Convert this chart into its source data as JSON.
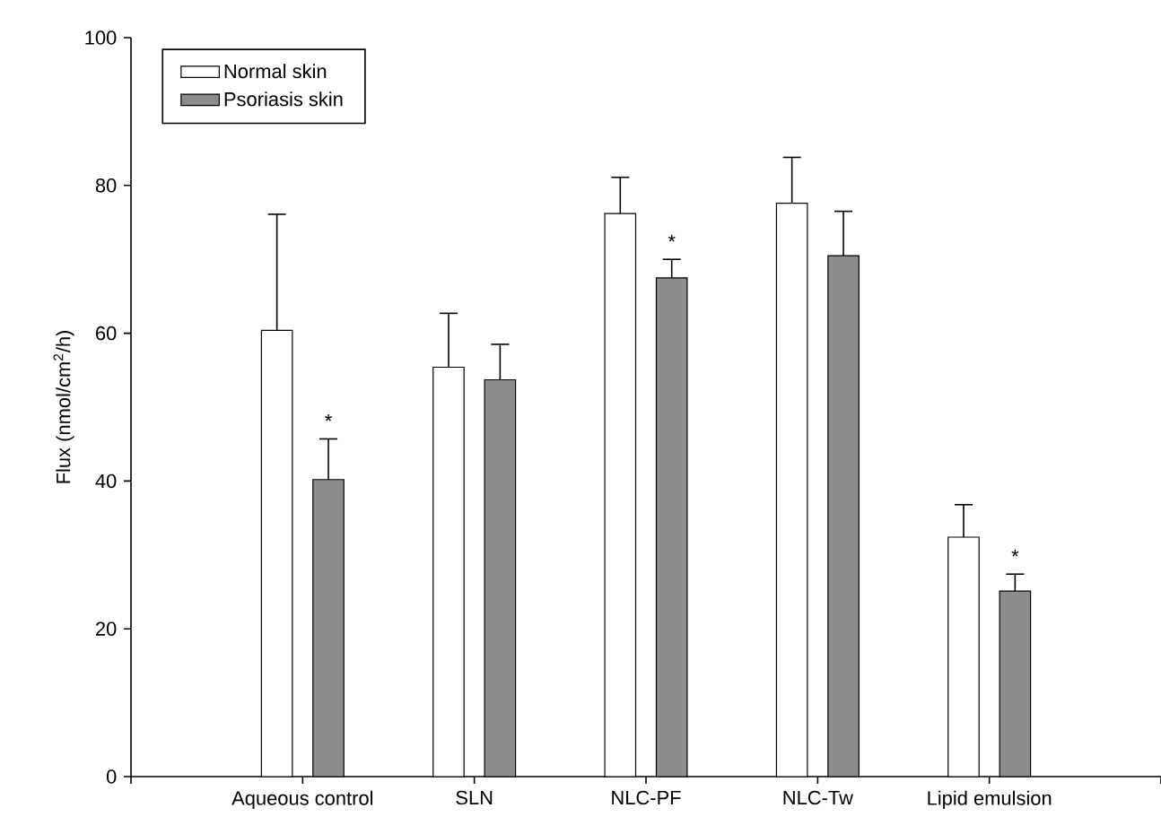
{
  "chart_data": {
    "type": "bar",
    "ylabel": "Flux (nmol/cm$^{2}$/h)",
    "categories": [
      "Aqueous control",
      "SLN",
      "NLC-PF",
      "NLC-Tw",
      "Lipid emulsion"
    ],
    "series": [
      {
        "name": "Normal skin",
        "color": "#ffffff",
        "values": [
          60.4,
          55.4,
          76.2,
          77.6,
          32.4
        ],
        "errors": [
          [
            60.4,
            76.1
          ],
          [
            55.4,
            62.7
          ],
          [
            76.2,
            81.1
          ],
          [
            77.6,
            83.8
          ],
          [
            32.4,
            36.8
          ]
        ]
      },
      {
        "name": "Psoriasis skin",
        "color": "#8c8c8c",
        "values": [
          40.2,
          53.7,
          67.5,
          70.5,
          25.1
        ],
        "errors": [
          [
            40.2,
            45.7
          ],
          [
            53.7,
            58.5
          ],
          [
            67.5,
            70.0
          ],
          [
            70.5,
            76.5
          ],
          [
            25.1,
            27.4
          ]
        ]
      }
    ],
    "annotations": [
      "*",
      "*",
      "*"
    ],
    "ylim": [
      0,
      100
    ],
    "yticks": [
      0,
      20,
      40,
      60,
      80,
      100
    ],
    "legend": "top left"
  }
}
